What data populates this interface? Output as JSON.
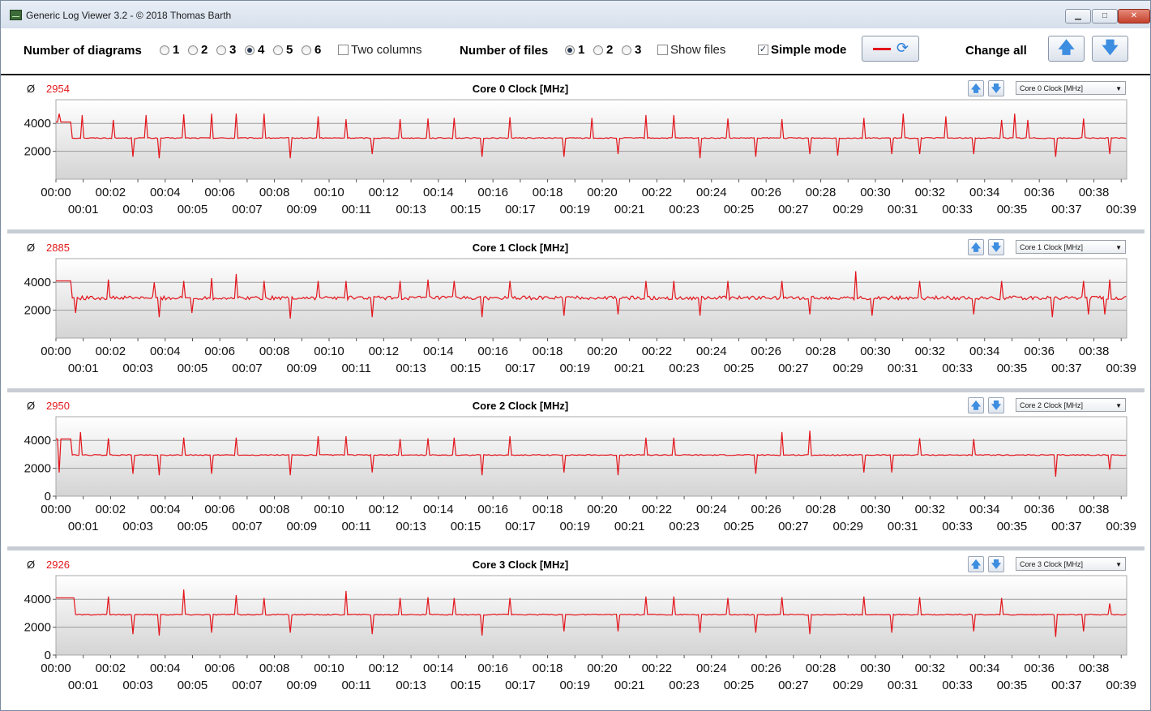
{
  "window": {
    "title": "Generic Log Viewer 3.2 - © 2018 Thomas Barth",
    "min_label": "▁",
    "max_label": "□",
    "close_label": "✕"
  },
  "toolbar": {
    "num_diagrams_label": "Number of diagrams",
    "diagram_options": [
      "1",
      "2",
      "3",
      "4",
      "5",
      "6"
    ],
    "diagram_selected": "4",
    "two_columns_label": "Two columns",
    "two_columns_checked": false,
    "num_files_label": "Number of files",
    "file_options": [
      "1",
      "2",
      "3"
    ],
    "file_selected": "1",
    "show_files_label": "Show files",
    "show_files_checked": false,
    "simple_mode_label": "Simple mode",
    "simple_mode_checked": true,
    "change_all_label": "Change all",
    "check_mark": "✓",
    "refresh_icon": "⟳",
    "up_icon": "🡅",
    "down_icon": "🡇"
  },
  "colors": {
    "series": "#e3141b",
    "plot_bg_top": "#ffffff",
    "plot_bg_bottom": "#d4d4d4",
    "grid": "#9a9a9a"
  },
  "panels": [
    {
      "avg_symbol": "Ø",
      "avg_value": "2954",
      "title": "Core 0 Clock [MHz]",
      "select_value": "Core 0 Clock [MHz]",
      "y_ticks": [
        "2000",
        "4000"
      ]
    },
    {
      "avg_symbol": "Ø",
      "avg_value": "2885",
      "title": "Core 1 Clock [MHz]",
      "select_value": "Core 1 Clock [MHz]",
      "y_ticks": [
        "2000",
        "4000"
      ]
    },
    {
      "avg_symbol": "Ø",
      "avg_value": "2950",
      "title": "Core 2 Clock [MHz]",
      "select_value": "Core 2 Clock [MHz]",
      "y_ticks": [
        "0",
        "2000",
        "4000"
      ]
    },
    {
      "avg_symbol": "Ø",
      "avg_value": "2926",
      "title": "Core 3 Clock [MHz]",
      "select_value": "Core 3 Clock [MHz]",
      "y_ticks": [
        "0",
        "2000",
        "4000"
      ]
    }
  ],
  "chart_data": [
    {
      "type": "line",
      "title": "Core 0 Clock [MHz]",
      "ylim": [
        0,
        5700
      ],
      "xlim_min": [
        0,
        39.2
      ],
      "x_ticks_even": [
        "00:00",
        "00:02",
        "00:04",
        "00:06",
        "00:08",
        "00:10",
        "00:12",
        "00:14",
        "00:16",
        "00:18",
        "00:20",
        "00:22",
        "00:24",
        "00:26",
        "00:28",
        "00:30",
        "00:32",
        "00:34",
        "00:36",
        "00:38"
      ],
      "x_ticks_odd": [
        "00:01",
        "00:03",
        "00:05",
        "00:07",
        "00:09",
        "00:11",
        "00:13",
        "00:15",
        "00:17",
        "00:19",
        "00:21",
        "00:23",
        "00:25",
        "00:27",
        "00:29",
        "00:31",
        "00:33",
        "00:35",
        "00:37",
        "00:39"
      ],
      "series": [
        {
          "baseline": 2950,
          "start_value": 4100,
          "start_duration_min": 0.6,
          "spikes_up": [
            [
              0.1,
              4700
            ],
            [
              0.95,
              4600
            ],
            [
              2.1,
              4250
            ],
            [
              3.3,
              4600
            ],
            [
              4.7,
              4650
            ],
            [
              5.7,
              4700
            ],
            [
              6.6,
              4700
            ],
            [
              7.6,
              4700
            ],
            [
              10.6,
              4300
            ],
            [
              12.6,
              4300
            ],
            [
              13.6,
              4350
            ],
            [
              14.6,
              4400
            ],
            [
              16.6,
              4450
            ],
            [
              18.6,
              4600
            ],
            [
              21.6,
              4600
            ],
            [
              22.6,
              4600
            ],
            [
              23.6,
              4300
            ],
            [
              24.6,
              4350
            ],
            [
              26.6,
              4300
            ],
            [
              27.6,
              4650
            ],
            [
              29.6,
              4400
            ],
            [
              30.6,
              4300
            ],
            [
              31.6,
              4400
            ],
            [
              32.6,
              4500
            ],
            [
              33.6,
              4300
            ],
            [
              34.6,
              4250
            ],
            [
              35.6,
              4250
            ],
            [
              36.6,
              4300
            ],
            [
              37.6,
              4350
            ],
            [
              38.6,
              4250
            ],
            [
              9.6,
              4500
            ],
            [
              19.6,
              4400
            ],
            [
              20.6,
              4300
            ],
            [
              28.6,
              4350
            ],
            [
              31.0,
              4700
            ],
            [
              35.1,
              4700
            ]
          ],
          "spikes_down": [
            [
              2.85,
              1600
            ],
            [
              3.8,
              1500
            ],
            [
              8.6,
              1500
            ],
            [
              11.6,
              1800
            ],
            [
              15.6,
              1600
            ],
            [
              18.6,
              1600
            ],
            [
              23.6,
              1500
            ],
            [
              25.6,
              1600
            ],
            [
              27.6,
              1800
            ],
            [
              28.6,
              1700
            ],
            [
              30.6,
              1800
            ],
            [
              33.6,
              1800
            ],
            [
              36.6,
              1600
            ],
            [
              38.6,
              1800
            ],
            [
              20.6,
              1800
            ],
            [
              31.6,
              1800
            ]
          ]
        }
      ]
    },
    {
      "type": "line",
      "title": "Core 1 Clock [MHz]",
      "ylim": [
        0,
        5700
      ],
      "xlim_min": [
        0,
        39.2
      ],
      "x_ticks_even": [
        "00:00",
        "00:02",
        "00:04",
        "00:06",
        "00:08",
        "00:10",
        "00:12",
        "00:14",
        "00:16",
        "00:18",
        "00:20",
        "00:22",
        "00:24",
        "00:26",
        "00:28",
        "00:30",
        "00:32",
        "00:34",
        "00:36",
        "00:38"
      ],
      "x_ticks_odd": [
        "00:01",
        "00:03",
        "00:05",
        "00:07",
        "00:09",
        "00:11",
        "00:13",
        "00:15",
        "00:17",
        "00:19",
        "00:21",
        "00:23",
        "00:25",
        "00:27",
        "00:29",
        "00:31",
        "00:33",
        "00:35",
        "00:37",
        "00:39"
      ],
      "series": [
        {
          "baseline": 2880,
          "start_value": 4100,
          "start_duration_min": 0.6,
          "noise": 450,
          "spikes_up": [
            [
              1.9,
              4200
            ],
            [
              3.6,
              4000
            ],
            [
              4.7,
              4100
            ],
            [
              5.7,
              4300
            ],
            [
              6.6,
              4600
            ],
            [
              7.6,
              4100
            ],
            [
              8.6,
              4200
            ],
            [
              9.6,
              4100
            ],
            [
              10.6,
              4100
            ],
            [
              12.6,
              4100
            ],
            [
              13.6,
              4200
            ],
            [
              14.6,
              4100
            ],
            [
              16.6,
              4100
            ],
            [
              18.6,
              4200
            ],
            [
              21.6,
              4100
            ],
            [
              22.6,
              4100
            ],
            [
              23.6,
              4000
            ],
            [
              24.6,
              4100
            ],
            [
              26.6,
              4100
            ],
            [
              29.3,
              4800
            ],
            [
              31.6,
              4100
            ],
            [
              33.6,
              4100
            ],
            [
              34.6,
              4100
            ],
            [
              37.6,
              4100
            ],
            [
              38.6,
              4200
            ]
          ],
          "spikes_down": [
            [
              0.7,
              1800
            ],
            [
              3.8,
              1500
            ],
            [
              5.0,
              1800
            ],
            [
              8.6,
              1400
            ],
            [
              11.6,
              1500
            ],
            [
              15.6,
              1500
            ],
            [
              18.6,
              1600
            ],
            [
              20.6,
              1700
            ],
            [
              23.6,
              1600
            ],
            [
              27.6,
              1700
            ],
            [
              29.9,
              1600
            ],
            [
              33.6,
              1700
            ],
            [
              36.5,
              1500
            ],
            [
              37.8,
              1700
            ],
            [
              38.4,
              1700
            ]
          ]
        }
      ]
    },
    {
      "type": "line",
      "title": "Core 2 Clock [MHz]",
      "ylim": [
        0,
        5700
      ],
      "xlim_min": [
        0,
        39.2
      ],
      "x_ticks_even": [
        "00:00",
        "00:02",
        "00:04",
        "00:06",
        "00:08",
        "00:10",
        "00:12",
        "00:14",
        "00:16",
        "00:18",
        "00:20",
        "00:22",
        "00:24",
        "00:26",
        "00:28",
        "00:30",
        "00:32",
        "00:34",
        "00:36",
        "00:38"
      ],
      "x_ticks_odd": [
        "00:01",
        "00:03",
        "00:05",
        "00:07",
        "00:09",
        "00:11",
        "00:13",
        "00:15",
        "00:17",
        "00:19",
        "00:21",
        "00:23",
        "00:25",
        "00:27",
        "00:29",
        "00:31",
        "00:33",
        "00:35",
        "00:37",
        "00:39"
      ],
      "series": [
        {
          "baseline": 2950,
          "start_value": 4100,
          "start_duration_min": 0.6,
          "spikes_up": [
            [
              0.9,
              4600
            ],
            [
              1.9,
              4150
            ],
            [
              4.7,
              4200
            ],
            [
              5.7,
              4300
            ],
            [
              6.6,
              4200
            ],
            [
              9.6,
              4300
            ],
            [
              10.6,
              4300
            ],
            [
              12.6,
              4100
            ],
            [
              13.6,
              4150
            ],
            [
              14.6,
              4200
            ],
            [
              18.6,
              4600
            ],
            [
              21.6,
              4200
            ],
            [
              22.6,
              4200
            ],
            [
              26.6,
              4600
            ],
            [
              27.6,
              4700
            ],
            [
              29.6,
              4200
            ],
            [
              31.6,
              4150
            ],
            [
              33.6,
              4100
            ],
            [
              38.6,
              4200
            ],
            [
              16.6,
              4300
            ]
          ],
          "spikes_down": [
            [
              0.1,
              1700
            ],
            [
              2.85,
              1600
            ],
            [
              3.8,
              1500
            ],
            [
              5.7,
              1600
            ],
            [
              8.6,
              1500
            ],
            [
              11.6,
              1700
            ],
            [
              15.6,
              1500
            ],
            [
              18.6,
              1700
            ],
            [
              20.6,
              1500
            ],
            [
              25.6,
              1600
            ],
            [
              29.6,
              1700
            ],
            [
              30.6,
              1700
            ],
            [
              36.6,
              1400
            ],
            [
              38.6,
              1900
            ]
          ]
        }
      ]
    },
    {
      "type": "line",
      "title": "Core 3 Clock [MHz]",
      "ylim": [
        0,
        5700
      ],
      "xlim_min": [
        0,
        39.2
      ],
      "x_ticks_even": [
        "00:00",
        "00:02",
        "00:04",
        "00:06",
        "00:08",
        "00:10",
        "00:12",
        "00:14",
        "00:16",
        "00:18",
        "00:20",
        "00:22",
        "00:24",
        "00:26",
        "00:28",
        "00:30",
        "00:32",
        "00:34",
        "00:36",
        "00:38"
      ],
      "x_ticks_odd": [
        "00:01",
        "00:03",
        "00:05",
        "00:07",
        "00:09",
        "00:11",
        "00:13",
        "00:15",
        "00:17",
        "00:19",
        "00:21",
        "00:23",
        "00:25",
        "00:27",
        "00:29",
        "00:31",
        "00:33",
        "00:35",
        "00:37",
        "00:39"
      ],
      "series": [
        {
          "baseline": 2900,
          "start_value": 4100,
          "start_duration_min": 0.7,
          "spikes_up": [
            [
              1.9,
              4200
            ],
            [
              4.7,
              4700
            ],
            [
              5.7,
              4250
            ],
            [
              6.6,
              4300
            ],
            [
              7.6,
              4100
            ],
            [
              8.6,
              4700
            ],
            [
              10.6,
              4600
            ],
            [
              12.6,
              4100
            ],
            [
              13.6,
              4150
            ],
            [
              14.6,
              4100
            ],
            [
              16.6,
              4100
            ],
            [
              18.6,
              4600
            ],
            [
              21.6,
              4200
            ],
            [
              22.6,
              4200
            ],
            [
              24.6,
              4100
            ],
            [
              26.6,
              4150
            ],
            [
              27.6,
              4100
            ],
            [
              29.6,
              4200
            ],
            [
              31.6,
              4150
            ],
            [
              33.6,
              4150
            ],
            [
              34.6,
              4100
            ],
            [
              38.6,
              3700
            ]
          ],
          "spikes_down": [
            [
              2.85,
              1500
            ],
            [
              3.8,
              1400
            ],
            [
              5.7,
              1600
            ],
            [
              8.6,
              1600
            ],
            [
              11.6,
              1500
            ],
            [
              15.6,
              1400
            ],
            [
              18.6,
              1700
            ],
            [
              20.6,
              1700
            ],
            [
              23.6,
              1600
            ],
            [
              25.6,
              1600
            ],
            [
              27.6,
              1500
            ],
            [
              30.6,
              1600
            ],
            [
              33.6,
              1700
            ],
            [
              36.6,
              1300
            ],
            [
              37.6,
              1700
            ]
          ]
        }
      ]
    }
  ]
}
